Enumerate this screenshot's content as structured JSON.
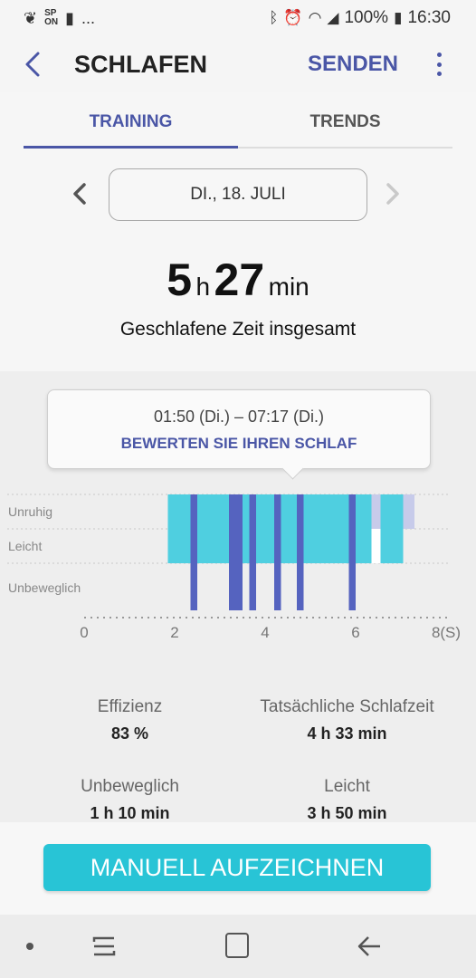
{
  "status_bar": {
    "left_icons": [
      "leaf-icon",
      "spon-icon",
      "s-icon",
      "more-notifications-icon"
    ],
    "spon_line1": "SP",
    "spon_line2": "ON",
    "dots": "...",
    "battery": "100%",
    "time": "16:30"
  },
  "app_bar": {
    "title": "SCHLAFEN",
    "send_label": "SENDEN"
  },
  "tabs": [
    {
      "label": "TRAINING",
      "active": true
    },
    {
      "label": "TRENDS",
      "active": false
    }
  ],
  "date": {
    "label": "DI., 18. JULI"
  },
  "total": {
    "hours": "5",
    "hours_unit": "h",
    "minutes": "27",
    "minutes_unit": "min",
    "label": "Geschlafene Zeit insgesamt"
  },
  "tooltip": {
    "time_range": "01:50 (Di.) – 07:17 (Di.)",
    "link": "BEWERTEN SIE IHREN SCHLAF"
  },
  "chart_data": {
    "type": "bar",
    "y_categories": [
      "Unruhig",
      "Leicht",
      "Unbeweglich"
    ],
    "x_ticks": [
      0,
      2,
      4,
      6
    ],
    "x_tick_last": "8(S)",
    "xlim": [
      0,
      8
    ],
    "colors": {
      "light": "#4fcfe0",
      "motionless": "#5563bf",
      "restless": "#c7cbea",
      "white_gap": "#ffffff"
    },
    "segments": [
      {
        "stage": "Leicht",
        "start": 1.85,
        "end": 6.6
      },
      {
        "stage": "Unbeweglich",
        "start": 2.35,
        "end": 2.5
      },
      {
        "stage": "Unbeweglich",
        "start": 3.2,
        "end": 3.5
      },
      {
        "stage": "Unbeweglich",
        "start": 3.65,
        "end": 3.8
      },
      {
        "stage": "Unbeweglich",
        "start": 4.2,
        "end": 4.35
      },
      {
        "stage": "Unbeweglich",
        "start": 4.7,
        "end": 4.85
      },
      {
        "stage": "Unbeweglich",
        "start": 5.85,
        "end": 6.0
      },
      {
        "stage": "Unruhig",
        "start": 6.35,
        "end": 6.55
      },
      {
        "stage": "Leicht",
        "start": 6.55,
        "end": 7.05
      },
      {
        "stage": "Unruhig",
        "start": 7.05,
        "end": 7.3
      }
    ]
  },
  "stats": [
    {
      "label": "Effizienz",
      "value": "83 %"
    },
    {
      "label": "Tatsächliche Schlafzeit",
      "value": "4 h 33 min"
    },
    {
      "label": "Unbeweglich",
      "value": "1 h 10 min"
    },
    {
      "label": "Leicht",
      "value": "3 h 50 min"
    }
  ],
  "record_button": "MANUELL AUFZEICHNEN",
  "nav": {
    "icons": [
      "nav-dot-icon",
      "recent-apps-icon",
      "home-icon",
      "back-icon"
    ]
  }
}
